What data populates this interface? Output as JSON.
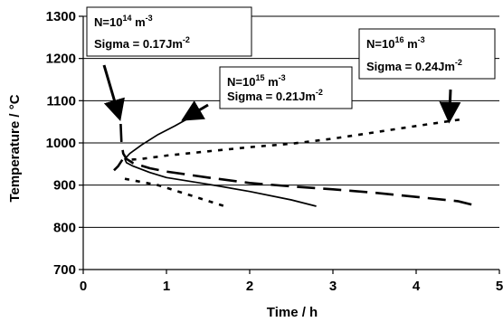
{
  "chart_data": {
    "type": "line",
    "title": "",
    "xlabel": "Time / h",
    "ylabel": "Temperature / °C",
    "xlim": [
      0,
      5
    ],
    "ylim": [
      700,
      1300
    ],
    "x_ticks": [
      "0",
      "1",
      "2",
      "3",
      "4",
      "5"
    ],
    "y_ticks": [
      "700",
      "800",
      "900",
      "1000",
      "1100",
      "1200",
      "1300"
    ],
    "grid": "horizontal",
    "legend": "none",
    "series": [
      {
        "label": "N=10^14 m^-3, Sigma = 0.17Jm^-2",
        "style": "long-dash",
        "segments": [
          [
            [
              0.45,
              1045
            ],
            [
              0.46,
              1000
            ],
            [
              0.48,
              975
            ],
            [
              0.52,
              962
            ],
            [
              0.6,
              952
            ],
            [
              0.8,
              940
            ],
            [
              1.0,
              932
            ],
            [
              1.5,
              918
            ],
            [
              2.0,
              905
            ],
            [
              2.5,
              897
            ],
            [
              3.0,
              890
            ],
            [
              3.5,
              882
            ],
            [
              4.0,
              872
            ],
            [
              4.5,
              862
            ],
            [
              4.75,
              850
            ]
          ],
          [
            [
              0.37,
              935
            ],
            [
              0.42,
              945
            ],
            [
              0.47,
              960
            ]
          ]
        ]
      },
      {
        "label": "N=10^15 m^-3, Sigma = 0.21Jm^-2",
        "style": "solid",
        "segments": [
          [
            [
              1.28,
              1060
            ],
            [
              1.1,
              1040
            ],
            [
              0.9,
              1020
            ],
            [
              0.7,
              995
            ],
            [
              0.56,
              975
            ],
            [
              0.5,
              962
            ],
            [
              0.52,
              953
            ],
            [
              0.6,
              945
            ],
            [
              0.8,
              930
            ],
            [
              1.0,
              918
            ],
            [
              1.5,
              902
            ],
            [
              2.0,
              885
            ],
            [
              2.5,
              865
            ],
            [
              2.8,
              850
            ]
          ]
        ]
      },
      {
        "label": "N=10^16 m^-3, Sigma = 0.24Jm^-2",
        "style": "dotted",
        "segments": [
          [
            [
              4.52,
              1055
            ],
            [
              4.0,
              1040
            ],
            [
              3.5,
              1025
            ],
            [
              3.0,
              1010
            ],
            [
              2.5,
              998
            ],
            [
              2.0,
              990
            ],
            [
              1.5,
              980
            ],
            [
              1.0,
              970
            ],
            [
              0.7,
              962
            ],
            [
              0.55,
              960
            ]
          ],
          [
            [
              0.5,
              915
            ],
            [
              0.9,
              900
            ],
            [
              1.3,
              875
            ],
            [
              1.7,
              850
            ]
          ]
        ]
      }
    ],
    "annotations": [
      {
        "id": "n14",
        "n_base": "N=10",
        "n_exp": "14",
        "n_unit": " m",
        "n_unit_exp": "-3",
        "sigma": "Sigma = 0.17Jm",
        "sigma_exp": "-2",
        "points_to": [
          0.42,
          1070
        ]
      },
      {
        "id": "n15",
        "n_base": "N=10",
        "n_exp": "15",
        "n_unit": " m",
        "n_unit_exp": "-3",
        "sigma": "Sigma = 0.21Jm",
        "sigma_exp": "-2",
        "points_to": [
          1.26,
          1062
        ]
      },
      {
        "id": "n16",
        "n_base": "N=10",
        "n_exp": "16",
        "n_unit": " m",
        "n_unit_exp": "-3",
        "sigma": "Sigma = 0.24Jm",
        "sigma_exp": "-2",
        "points_to": [
          4.4,
          1065
        ]
      }
    ]
  }
}
